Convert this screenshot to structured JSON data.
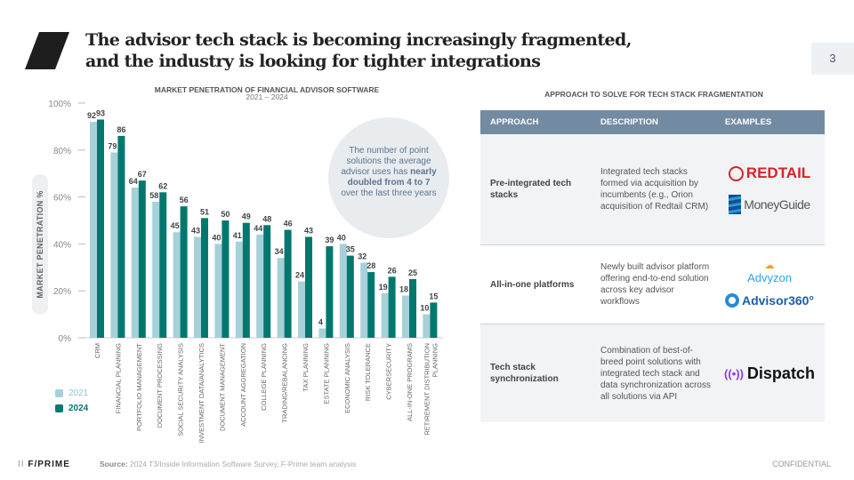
{
  "header": {
    "title_line1": "The advisor tech stack is becoming increasingly fragmented,",
    "title_line2": "and the industry is looking for tighter integrations",
    "page_number": "3"
  },
  "callout": {
    "pre": "The number of point solutions the average advisor uses has ",
    "bold": "nearly doubled from 4 to 7",
    "post": " over the last three years"
  },
  "chart_data": {
    "type": "bar",
    "title": "MARKET PENETRATION OF FINANCIAL ADVISOR SOFTWARE",
    "subtitle": "2021 – 2024",
    "ylabel": "MARKET PENETRATION %",
    "xlabel": "",
    "ylim": [
      0,
      100
    ],
    "yticks": [
      "0%",
      "20%",
      "40%",
      "60%",
      "80%",
      "100%"
    ],
    "categories": [
      "CRM",
      "FINANCIAL PLANNING",
      "PORTFOLIO MANAGEMENT",
      "DOCUMENT PROCESSING",
      "SOCIAL SECURITY ANALYSIS",
      "INVESTMENT DATA/ANALYTICS",
      "DOCUMENT MANAGEMENT",
      "ACCOUNT AGGREGATION",
      "COLLEGE PLANNING",
      "TRADING/REBALANCING",
      "TAX PLANNING",
      "ESTATE PLANNING",
      "ECONOMIC ANALYSIS",
      "RISK TOLERANCE",
      "CYBERSECURITY",
      "ALL-IN-ONE PROGRAMS",
      "RETIREMENT DISTRIBUTION PLANNING"
    ],
    "series": [
      {
        "name": "2021",
        "color": "#a7d1d9",
        "values": [
          92,
          79,
          64,
          58,
          45,
          43,
          40,
          41,
          44,
          34,
          24,
          4,
          40,
          32,
          19,
          18,
          10
        ]
      },
      {
        "name": "2024",
        "color": "#00786e",
        "values": [
          93,
          86,
          67,
          62,
          56,
          51,
          50,
          49,
          48,
          46,
          43,
          39,
          35,
          28,
          26,
          25,
          15
        ]
      }
    ],
    "legend": "bottom-left"
  },
  "table": {
    "title": "APPROACH TO SOLVE FOR TECH STACK FRAGMENTATION",
    "headers": [
      "APPROACH",
      "DESCRIPTION",
      "EXAMPLES"
    ],
    "rows": [
      {
        "approach": "Pre-integrated tech stacks",
        "description": "Integrated tech stacks formed via acquisition by incumbents (e.g., Orion acquisition of Redtail CRM)",
        "examples": [
          "REDTAIL",
          "MoneyGuide"
        ]
      },
      {
        "approach": "All-in-one platforms",
        "description": "Newly built advisor platform offering end-to-end solution across key advisor workflows",
        "examples": [
          "Advyzon",
          "Advisor360°"
        ]
      },
      {
        "approach": "Tech stack synchronization",
        "description": "Combination of best-of-breed point solutions with integrated tech stack and data synchronization across all solutions via API",
        "examples": [
          "Dispatch"
        ]
      }
    ]
  },
  "footer": {
    "brand": "F/PRIME",
    "source_label": "Source:",
    "source_text": " 2024 T3/Inside Information Software Survey, F-Prime team analysis",
    "confidential": "CONFIDENTIAL"
  }
}
